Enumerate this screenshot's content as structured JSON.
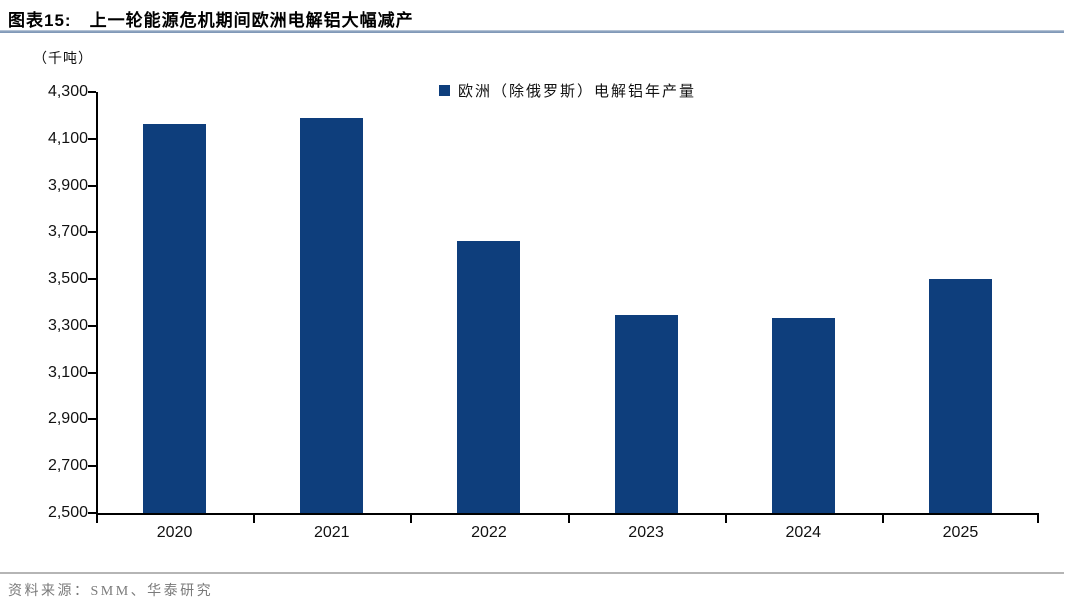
{
  "header": {
    "figure_label": "图表15:",
    "title": "上一轮能源危机期间欧洲电解铝大幅减产"
  },
  "chart": {
    "unit_label": "（千吨）",
    "legend_label": "欧洲（除俄罗斯）电解铝年产量"
  },
  "chart_data": {
    "type": "bar",
    "title": "上一轮能源危机期间欧洲电解铝大幅减产",
    "categories": [
      "2020",
      "2021",
      "2022",
      "2023",
      "2024",
      "2025"
    ],
    "series": [
      {
        "name": "欧洲（除俄罗斯）电解铝年产量",
        "values": [
          4165,
          4190,
          3665,
          3345,
          3335,
          3500
        ]
      }
    ],
    "xlabel": "",
    "ylabel": "千吨",
    "ylim": [
      2500,
      4300
    ],
    "ytick_step": 200,
    "ytick_labels": [
      "4,300",
      "4,100",
      "3,900",
      "3,700",
      "3,500",
      "3,300",
      "3,100",
      "2,900",
      "2,700",
      "2,500"
    ],
    "grid": false,
    "legend_position": "top-center",
    "bar_color": "#0E3E7C"
  },
  "footer": {
    "source": "资料来源：SMM、华泰研究"
  },
  "colors": {
    "bar": "#0E3E7C",
    "axis": "#000000",
    "title_underline": "#8199B8",
    "footer_divider": "#B5B5B5",
    "source_text": "#7A7A7A"
  }
}
